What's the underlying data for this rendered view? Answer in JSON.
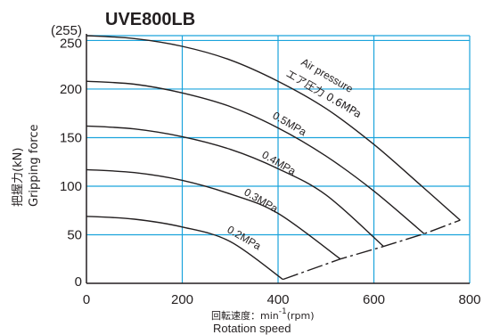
{
  "chart_data": {
    "type": "line",
    "title": "UVE800LB",
    "ylabel_jp": "把握力(kN)",
    "ylabel_en": "Gripping force",
    "xlabel_jp": "回転速度：min",
    "xlabel_sup": "-1",
    "xlabel_unit": "(rpm)",
    "xlabel_en": "Rotation speed",
    "xlim": [
      0,
      800
    ],
    "ylim": [
      0,
      255
    ],
    "xticks": [
      0,
      200,
      400,
      600,
      800
    ],
    "xtick_labels": [
      "0",
      "200",
      "400",
      "600",
      "800"
    ],
    "yticks": [
      0,
      50,
      100,
      150,
      200,
      250,
      255
    ],
    "ytick_labels": [
      "0",
      "50",
      "100",
      "150",
      "200",
      "250",
      "(255)"
    ],
    "grid": true,
    "series": [
      {
        "name": "0.6MPa",
        "x": [
          0,
          100,
          200,
          300,
          400,
          500,
          600,
          700,
          780
        ],
        "y": [
          255,
          252,
          244,
          230,
          208,
          180,
          143,
          100,
          65
        ]
      },
      {
        "name": "0.5MPa",
        "x": [
          0,
          100,
          200,
          300,
          400,
          500,
          600,
          705
        ],
        "y": [
          208,
          205,
          196,
          182,
          160,
          131,
          95,
          51
        ]
      },
      {
        "name": "0.4MPa",
        "x": [
          0,
          100,
          200,
          300,
          400,
          500,
          620
        ],
        "y": [
          162,
          159,
          151,
          138,
          118,
          91,
          38
        ]
      },
      {
        "name": "0.3MPa",
        "x": [
          0,
          100,
          200,
          300,
          400,
          530
        ],
        "y": [
          117,
          114,
          106,
          92,
          72,
          25
        ]
      },
      {
        "name": "0.2MPa",
        "x": [
          0,
          100,
          200,
          300,
          410
        ],
        "y": [
          69,
          66,
          58,
          43,
          4
        ]
      }
    ],
    "limit_line": {
      "x": [
        410,
        530,
        620,
        705,
        780
      ],
      "y": [
        4,
        25,
        38,
        51,
        65
      ]
    },
    "annotations": [
      {
        "text": "Air pressure",
        "style": "en"
      },
      {
        "text": "エア圧力 0.6MPa",
        "style": "jp"
      }
    ]
  }
}
